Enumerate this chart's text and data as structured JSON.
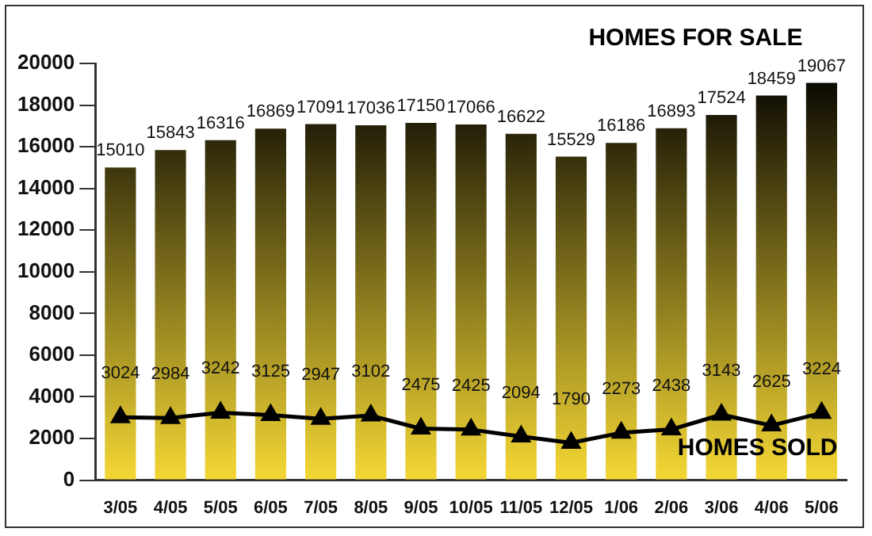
{
  "chart_data": {
    "type": "bar",
    "categories": [
      "3/05",
      "4/05",
      "5/05",
      "6/05",
      "7/05",
      "8/05",
      "9/05",
      "10/05",
      "11/05",
      "12/05",
      "1/06",
      "2/06",
      "3/06",
      "4/06",
      "5/06"
    ],
    "series": [
      {
        "name": "HOMES FOR SALE",
        "color": "#f5d835",
        "values": [
          15010,
          15843,
          16316,
          16869,
          17091,
          17036,
          17150,
          17066,
          16622,
          15529,
          16186,
          16893,
          17524,
          18459,
          19067
        ]
      },
      {
        "name": "HOMES SOLD",
        "type": "line",
        "color": "#000000",
        "values": [
          3024,
          2984,
          3242,
          3125,
          2947,
          3102,
          2475,
          2425,
          2094,
          1790,
          2273,
          2438,
          3143,
          2625,
          3224
        ]
      }
    ],
    "ylim": [
      0,
      20000
    ],
    "yticks": [
      0,
      2000,
      4000,
      6000,
      8000,
      10000,
      12000,
      14000,
      16000,
      18000,
      20000
    ],
    "grid": false,
    "legend": false,
    "marker": "triangle",
    "line_style": "solid",
    "data_labels": true
  }
}
